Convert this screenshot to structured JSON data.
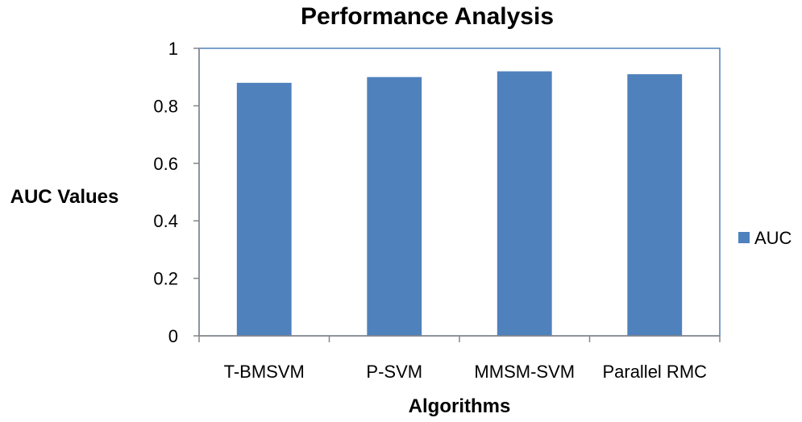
{
  "chart_data": {
    "type": "bar",
    "title": "Performance Analysis",
    "xlabel": "Algorithms",
    "ylabel": "AUC Values",
    "categories": [
      "T-BMSVM",
      "P-SVM",
      "MMSM-SVM",
      "Parallel RMC"
    ],
    "series": [
      {
        "name": "AUC",
        "values": [
          0.88,
          0.9,
          0.92,
          0.91
        ]
      }
    ],
    "ylim": [
      0,
      1
    ],
    "yticks": [
      "0",
      "0.2",
      "0.4",
      "0.6",
      "0.8",
      "1"
    ],
    "grid": false,
    "legend_position": "right",
    "colors": {
      "bar": "#4F81BD",
      "plot_border": "#4F81BD",
      "axis": "#868686"
    }
  }
}
